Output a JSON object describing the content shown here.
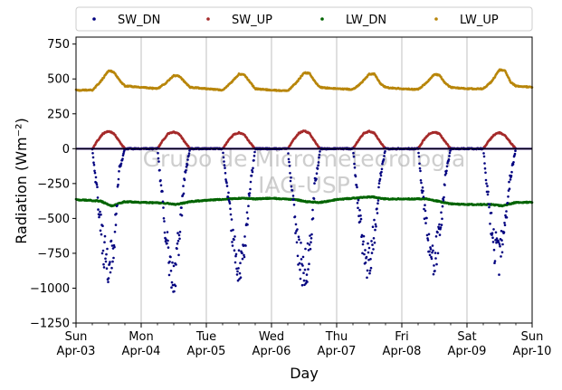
{
  "chart_data": {
    "type": "scatter",
    "xlabel": "Day",
    "ylabel": "Radiation (Wm⁻²)",
    "ylim": [
      -1250,
      800
    ],
    "yticks": [
      750,
      500,
      250,
      0,
      -250,
      -500,
      -750,
      -1000,
      -1250
    ],
    "ytick_labels": [
      "750",
      "500",
      "250",
      "0",
      "−250",
      "−500",
      "−750",
      "−1000",
      "−1250"
    ],
    "xlim": [
      "2022-04-03",
      "2022-04-10"
    ],
    "xticks": [
      {
        "day": "Sun",
        "date": "Apr-03"
      },
      {
        "day": "Mon",
        "date": "Apr-04"
      },
      {
        "day": "Tue",
        "date": "Apr-05"
      },
      {
        "day": "Wed",
        "date": "Apr-06"
      },
      {
        "day": "Thu",
        "date": "Apr-07"
      },
      {
        "day": "Fri",
        "date": "Apr-08"
      },
      {
        "day": "Sat",
        "date": "Apr-09"
      },
      {
        "day": "Sun",
        "date": "Apr-10"
      }
    ],
    "grid": "vertical",
    "zero_line": 0,
    "legend": "top, outside, 4 columns",
    "watermark": [
      "Grupo de Micrometeorologia",
      "IAG-USP"
    ],
    "series": [
      {
        "name": "SW_DN",
        "color": "#00007f",
        "x": [
          "04-03 06:00",
          "04-03 08:00",
          "04-03 10:00",
          "04-03 12:00",
          "04-03 14:00",
          "04-03 16:00",
          "04-03 18:00",
          "04-04 06:00",
          "04-04 08:00",
          "04-04 10:00",
          "04-04 12:00",
          "04-04 14:00",
          "04-04 16:00",
          "04-04 18:00",
          "04-05 06:00",
          "04-05 08:00",
          "04-05 10:00",
          "04-05 12:00",
          "04-05 14:00",
          "04-05 16:00",
          "04-05 18:00",
          "04-06 06:00",
          "04-06 08:00",
          "04-06 10:00",
          "04-06 12:00",
          "04-06 14:00",
          "04-06 16:00",
          "04-06 18:00",
          "04-07 06:00",
          "04-07 08:00",
          "04-07 10:00",
          "04-07 12:00",
          "04-07 14:00",
          "04-07 16:00",
          "04-07 18:00",
          "04-08 06:00",
          "04-08 08:00",
          "04-08 10:00",
          "04-08 12:00",
          "04-08 14:00",
          "04-08 16:00",
          "04-08 18:00",
          "04-09 06:00",
          "04-09 08:00",
          "04-09 10:00",
          "04-09 12:00",
          "04-09 14:00",
          "04-09 16:00",
          "04-09 18:00"
        ],
        "y": [
          0,
          -350,
          -700,
          -880,
          -650,
          -150,
          0,
          0,
          -400,
          -750,
          -950,
          -650,
          -200,
          0,
          0,
          -350,
          -700,
          -850,
          -750,
          -300,
          0,
          0,
          -400,
          -750,
          -880,
          -780,
          -250,
          0,
          0,
          -400,
          -750,
          -820,
          -600,
          -200,
          0,
          0,
          -400,
          -700,
          -800,
          -600,
          -200,
          0,
          0,
          -400,
          -700,
          -780,
          -550,
          -200,
          0
        ]
      },
      {
        "name": "SW_UP",
        "color": "#a52a2a",
        "x": [
          "04-03 06:00",
          "04-03 08:00",
          "04-03 10:00",
          "04-03 12:00",
          "04-03 14:00",
          "04-03 16:00",
          "04-03 18:00",
          "04-04 06:00",
          "04-04 08:00",
          "04-04 10:00",
          "04-04 12:00",
          "04-04 14:00",
          "04-04 16:00",
          "04-04 18:00",
          "04-05 06:00",
          "04-05 08:00",
          "04-05 10:00",
          "04-05 12:00",
          "04-05 14:00",
          "04-05 16:00",
          "04-05 18:00",
          "04-06 06:00",
          "04-06 08:00",
          "04-06 10:00",
          "04-06 12:00",
          "04-06 14:00",
          "04-06 16:00",
          "04-06 18:00",
          "04-07 06:00",
          "04-07 08:00",
          "04-07 10:00",
          "04-07 12:00",
          "04-07 14:00",
          "04-07 16:00",
          "04-07 18:00",
          "04-08 06:00",
          "04-08 08:00",
          "04-08 10:00",
          "04-08 12:00",
          "04-08 14:00",
          "04-08 16:00",
          "04-08 18:00",
          "04-09 06:00",
          "04-09 08:00",
          "04-09 10:00",
          "04-09 12:00",
          "04-09 14:00",
          "04-09 16:00",
          "04-09 18:00"
        ],
        "y": [
          0,
          60,
          110,
          125,
          110,
          50,
          0,
          0,
          60,
          110,
          120,
          105,
          50,
          0,
          0,
          55,
          100,
          115,
          100,
          45,
          0,
          0,
          60,
          110,
          130,
          110,
          50,
          0,
          0,
          60,
          110,
          125,
          110,
          50,
          0,
          0,
          60,
          105,
          120,
          105,
          50,
          0,
          0,
          55,
          100,
          115,
          95,
          45,
          0
        ]
      },
      {
        "name": "LW_DN",
        "color": "#006400",
        "x": [
          "04-03 00:00",
          "04-03 09:00",
          "04-03 13:00",
          "04-03 18:00",
          "04-04 00:00",
          "04-04 09:00",
          "04-04 13:00",
          "04-04 18:00",
          "04-05 00:00",
          "04-05 09:00",
          "04-05 13:00",
          "04-05 18:00",
          "04-06 00:00",
          "04-06 09:00",
          "04-06 13:00",
          "04-06 18:00",
          "04-07 00:00",
          "04-07 09:00",
          "04-07 13:00",
          "04-07 18:00",
          "04-08 00:00",
          "04-08 09:00",
          "04-08 13:00",
          "04-08 18:00",
          "04-09 00:00",
          "04-09 09:00",
          "04-09 13:00",
          "04-09 18:00",
          "04-10 00:00"
        ],
        "y": [
          -365,
          -375,
          -410,
          -380,
          -385,
          -390,
          -400,
          -380,
          -370,
          -360,
          -355,
          -360,
          -355,
          -365,
          -380,
          -385,
          -365,
          -350,
          -345,
          -360,
          -360,
          -360,
          -375,
          -395,
          -400,
          -400,
          -410,
          -385,
          -385
        ]
      },
      {
        "name": "LW_UP",
        "color": "#b8860b",
        "x": [
          "04-03 00:00",
          "04-03 06:00",
          "04-03 09:00",
          "04-03 12:00",
          "04-03 14:00",
          "04-03 16:00",
          "04-03 18:00",
          "04-04 00:00",
          "04-04 06:00",
          "04-04 09:00",
          "04-04 12:00",
          "04-04 14:00",
          "04-04 16:00",
          "04-04 18:00",
          "04-05 00:00",
          "04-05 06:00",
          "04-05 09:00",
          "04-05 12:00",
          "04-05 14:00",
          "04-05 16:00",
          "04-05 18:00",
          "04-06 00:00",
          "04-06 06:00",
          "04-06 09:00",
          "04-06 12:00",
          "04-06 14:00",
          "04-06 16:00",
          "04-06 18:00",
          "04-07 00:00",
          "04-07 06:00",
          "04-07 09:00",
          "04-07 12:00",
          "04-07 14:00",
          "04-07 16:00",
          "04-07 18:00",
          "04-08 00:00",
          "04-08 06:00",
          "04-08 09:00",
          "04-08 12:00",
          "04-08 14:00",
          "04-08 16:00",
          "04-08 18:00",
          "04-09 00:00",
          "04-09 06:00",
          "04-09 09:00",
          "04-09 12:00",
          "04-09 14:00",
          "04-09 16:00",
          "04-09 18:00",
          "04-10 00:00"
        ],
        "y": [
          420,
          420,
          480,
          560,
          550,
          490,
          450,
          440,
          430,
          470,
          525,
          520,
          480,
          440,
          430,
          420,
          470,
          535,
          530,
          480,
          430,
          420,
          415,
          470,
          545,
          540,
          480,
          440,
          430,
          425,
          470,
          535,
          535,
          470,
          440,
          430,
          425,
          470,
          535,
          525,
          470,
          440,
          430,
          430,
          480,
          565,
          560,
          480,
          450,
          440
        ]
      }
    ]
  }
}
